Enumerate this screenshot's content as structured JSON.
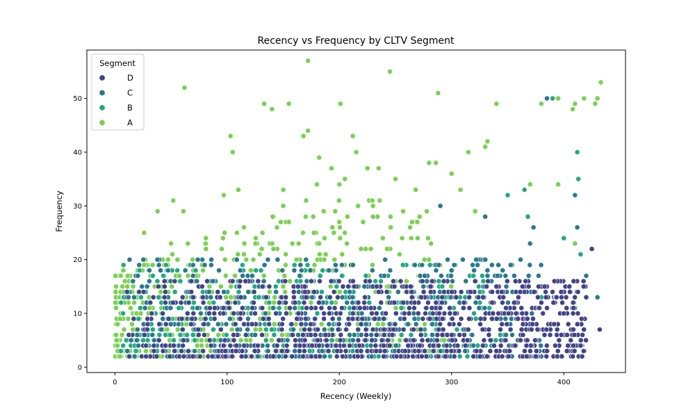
{
  "chart_data": {
    "type": "scatter",
    "title": "Recency vs Frequency by CLTV Segment",
    "xlabel": "Recency (Weekly)",
    "ylabel": "Frequency",
    "xlim": [
      -25,
      455
    ],
    "ylim": [
      -1,
      59
    ],
    "xticks": [
      0,
      100,
      200,
      300,
      400
    ],
    "yticks": [
      0,
      10,
      20,
      30,
      40,
      50
    ],
    "grid": false,
    "legend": {
      "title": "Segment",
      "placement": "top-left"
    },
    "series": [
      {
        "name": "D",
        "color": "#414487",
        "x_range": [
          10,
          435
        ],
        "typical_y_range": [
          2,
          17
        ],
        "notable_points": [
          [
            385,
            3
          ],
          [
            375,
            2
          ],
          [
            420,
            13
          ],
          [
            425,
            22
          ],
          [
            432,
            7
          ],
          [
            405,
            15
          ],
          [
            390,
            14
          ],
          [
            400,
            10
          ],
          [
            415,
            4
          ],
          [
            380,
            12
          ]
        ]
      },
      {
        "name": "C",
        "color": "#2a788e",
        "x_range": [
          5,
          435
        ],
        "typical_y_range": [
          2,
          22
        ],
        "notable_points": [
          [
            385,
            50
          ],
          [
            410,
            32
          ],
          [
            420,
            17
          ],
          [
            430,
            13
          ],
          [
            370,
            23
          ],
          [
            373,
            26
          ],
          [
            330,
            28
          ],
          [
            310,
            20
          ],
          [
            290,
            30
          ],
          [
            412,
            26
          ]
        ]
      },
      {
        "name": "B",
        "color": "#22a884",
        "x_range": [
          0,
          430
        ],
        "typical_y_range": [
          2,
          25
        ],
        "notable_points": [
          [
            390,
            50
          ],
          [
            412,
            40
          ],
          [
            413,
            35
          ],
          [
            400,
            24
          ],
          [
            415,
            21
          ],
          [
            350,
            32
          ],
          [
            365,
            33
          ],
          [
            380,
            13
          ],
          [
            410,
            11
          ],
          [
            368,
            28
          ]
        ]
      },
      {
        "name": "A",
        "color": "#7ad151",
        "x_range": [
          0,
          435
        ],
        "typical_y_range": [
          2,
          30
        ],
        "notable_points": [
          [
            172,
            57
          ],
          [
            245,
            55
          ],
          [
            62,
            52
          ],
          [
            288,
            51
          ],
          [
            433,
            53
          ],
          [
            430,
            50
          ],
          [
            428,
            49
          ],
          [
            418,
            50
          ],
          [
            410,
            49
          ],
          [
            408,
            48
          ],
          [
            395,
            50
          ],
          [
            380,
            49
          ],
          [
            340,
            49
          ],
          [
            201,
            49
          ],
          [
            133,
            49
          ],
          [
            140,
            48
          ],
          [
            155,
            49
          ],
          [
            172,
            44
          ],
          [
            103,
            43
          ],
          [
            168,
            43
          ],
          [
            212,
            43
          ],
          [
            332,
            42
          ],
          [
            330,
            41
          ],
          [
            105,
            40
          ],
          [
            215,
            40
          ],
          [
            315,
            40
          ],
          [
            182,
            39
          ],
          [
            193,
            37
          ],
          [
            225,
            37
          ],
          [
            235,
            37
          ],
          [
            280,
            38
          ],
          [
            286,
            38
          ],
          [
            300,
            36
          ],
          [
            205,
            35
          ],
          [
            250,
            35
          ],
          [
            370,
            34
          ],
          [
            395,
            34
          ],
          [
            180,
            34
          ],
          [
            200,
            34
          ],
          [
            110,
            33
          ],
          [
            150,
            33
          ],
          [
            268,
            33
          ],
          [
            308,
            33
          ],
          [
            52,
            31
          ],
          [
            97,
            32
          ],
          [
            150,
            30
          ],
          [
            290,
            30
          ],
          [
            61,
            29
          ],
          [
            38,
            29
          ],
          [
            230,
            28
          ],
          [
            230,
            30
          ],
          [
            321,
            29
          ],
          [
            155,
            27
          ],
          [
            170,
            28
          ],
          [
            186,
            29
          ],
          [
            26,
            25
          ],
          [
            50,
            23
          ],
          [
            65,
            23
          ],
          [
            410,
            23
          ]
        ]
      }
    ]
  }
}
